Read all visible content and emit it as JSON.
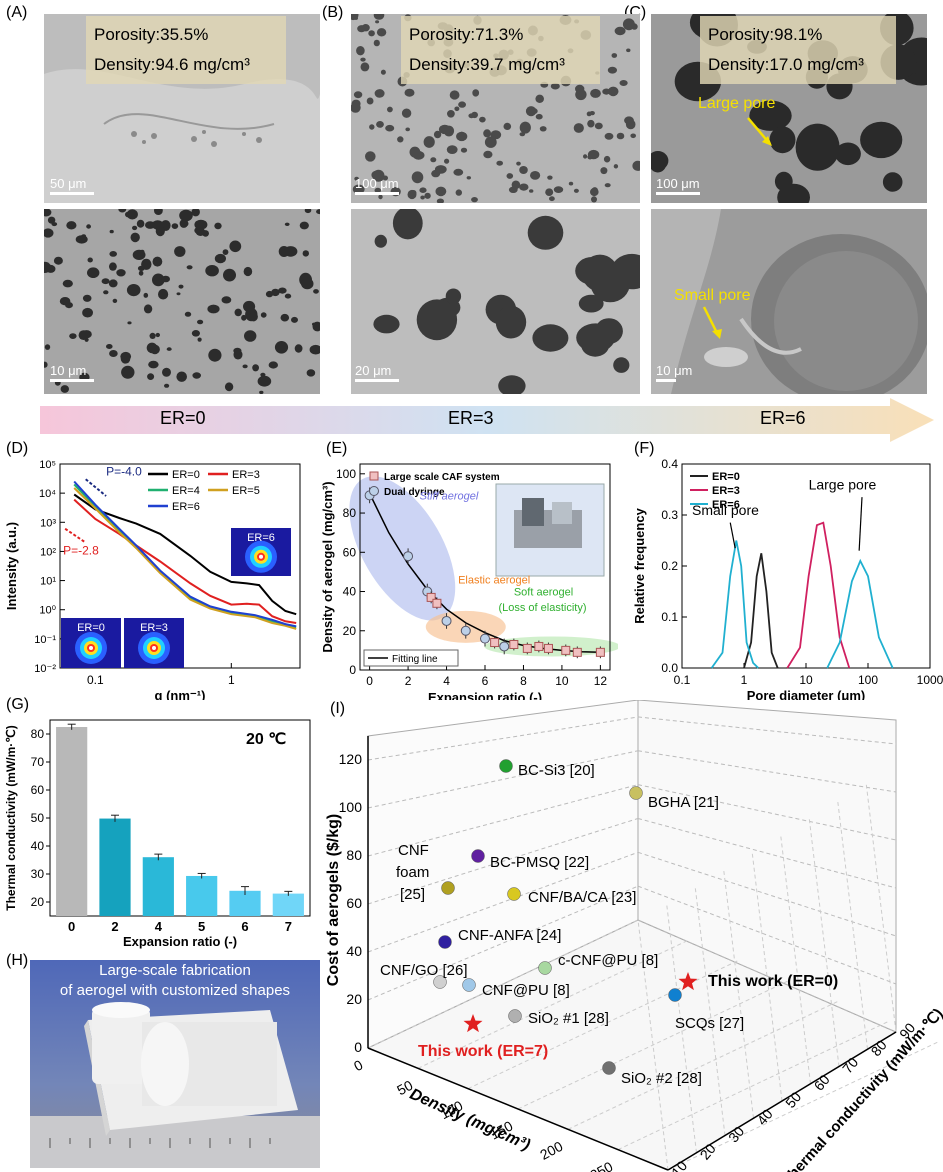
{
  "panels": {
    "A": {
      "label": "(A)",
      "porosity": "Porosity:35.5%",
      "density": "Density:94.6 mg/cm³",
      "scale_top": "50 μm",
      "scale_bottom": "10 μm"
    },
    "B": {
      "label": "(B)",
      "porosity": "Porosity:71.3%",
      "density": "Density:39.7 mg/cm³",
      "scale_top": "100 μm",
      "scale_bottom": "20 μm"
    },
    "C": {
      "label": "(C)",
      "porosity": "Porosity:98.1%",
      "density": "Density:17.0 mg/cm³",
      "scale_top": "100 μm",
      "scale_bottom": "10 μm",
      "large_pore": "Large pore",
      "small_pore": "Small pore"
    },
    "D": {
      "label": "(D)"
    },
    "E": {
      "label": "(E)"
    },
    "F": {
      "label": "(F)"
    },
    "G": {
      "label": "(G)"
    },
    "H": {
      "label": "(H)",
      "caption_1": "Large-scale fabrication",
      "caption_2": "of aerogel with customized shapes"
    },
    "I": {
      "label": "(I)"
    }
  },
  "er_arrow": {
    "left": "ER=0",
    "mid": "ER=3",
    "right": "ER=6"
  },
  "chart_data": [
    {
      "id": "D",
      "type": "line",
      "xlabel": "q (nm⁻¹)",
      "ylabel": "Intensity (a.u.)",
      "log_x": true,
      "log_y": true,
      "ylim": [
        0.01,
        100000
      ],
      "x_ticks": [
        "0.1",
        "1"
      ],
      "y_ticks": [
        "10⁻²",
        "10⁻¹",
        "10⁰",
        "10¹",
        "10²",
        "10³",
        "10⁴",
        "10⁵"
      ],
      "annotations": [
        "P=-4.0",
        "P=-2.8"
      ],
      "insets": [
        "ER=6",
        "ER=0",
        "ER=3"
      ],
      "legend": "top-right",
      "series": [
        {
          "name": "ER=0",
          "color": "#000000",
          "x": [
            0.07,
            0.1,
            0.15,
            0.2,
            0.3,
            0.5,
            0.7,
            1.0,
            1.3,
            1.6,
            2.0,
            2.5,
            3.0
          ],
          "y": [
            9000,
            2800,
            1400,
            900,
            400,
            70,
            20,
            9,
            8,
            7,
            2,
            0.9,
            0.7
          ]
        },
        {
          "name": "ER=3",
          "color": "#e02020",
          "x": [
            0.07,
            0.1,
            0.15,
            0.2,
            0.3,
            0.5,
            0.7,
            1.0,
            1.3,
            1.6,
            2.0,
            2.5,
            3.0
          ],
          "y": [
            6000,
            1300,
            400,
            160,
            45,
            8,
            3,
            1.5,
            1.6,
            1.5,
            0.6,
            0.4,
            0.35
          ]
        },
        {
          "name": "ER=4",
          "color": "#20b070",
          "x": [
            0.07,
            0.1,
            0.15,
            0.2,
            0.3,
            0.5,
            0.7,
            1.0,
            1.5,
            2.0,
            2.5,
            3.0
          ],
          "y": [
            20000,
            3500,
            500,
            150,
            20,
            2.5,
            1.2,
            0.8,
            0.6,
            0.4,
            0.3,
            0.25
          ]
        },
        {
          "name": "ER=5",
          "color": "#d0a020",
          "x": [
            0.07,
            0.1,
            0.15,
            0.2,
            0.3,
            0.5,
            0.7,
            1.0,
            1.5,
            2.0,
            2.5,
            3.0
          ],
          "y": [
            15000,
            3000,
            450,
            130,
            18,
            2.2,
            1.1,
            0.7,
            0.55,
            0.35,
            0.28,
            0.22
          ]
        },
        {
          "name": "ER=6",
          "color": "#2040d0",
          "x": [
            0.07,
            0.1,
            0.15,
            0.2,
            0.3,
            0.5,
            0.7,
            1.0,
            1.5,
            2.0,
            2.5,
            3.0
          ],
          "y": [
            25000,
            4000,
            600,
            160,
            22,
            2.8,
            1.3,
            0.85,
            0.65,
            0.45,
            0.32,
            0.27
          ]
        }
      ]
    },
    {
      "id": "E",
      "type": "scatter",
      "xlabel": "Expansion ratio (-)",
      "ylabel": "Density of aerogel (mg/cm³)",
      "xlim": [
        -0.5,
        12.5
      ],
      "ylim": [
        0,
        105
      ],
      "x_ticks": [
        0,
        2,
        4,
        6,
        8,
        10,
        12
      ],
      "y_ticks": [
        0,
        20,
        40,
        60,
        80,
        100
      ],
      "annotations": [
        "Stiff aerogel",
        "Elastic aerogel",
        "Soft aerogel",
        "(Loss of elasticity)"
      ],
      "legend": "top-left",
      "series": [
        {
          "name": "Large scale CAF system",
          "marker": "square",
          "x": [
            3.2,
            3.5,
            6.5,
            7.5,
            8.2,
            8.8,
            9.3,
            10.2,
            10.8,
            12
          ],
          "y": [
            37,
            34,
            14,
            13,
            11,
            12,
            11,
            10,
            9,
            9
          ]
        },
        {
          "name": "Dual dyringe",
          "marker": "circle",
          "x": [
            0,
            2,
            3,
            4,
            5,
            6,
            7
          ],
          "y": [
            89,
            58,
            40,
            25,
            20,
            16,
            12
          ]
        },
        {
          "name": "Fitting line",
          "marker": "line",
          "x": [
            0,
            1,
            2,
            3,
            4,
            5,
            6,
            7,
            8,
            9,
            10,
            11,
            12
          ],
          "y": [
            90,
            70,
            54,
            41,
            31,
            24,
            19,
            15,
            12.5,
            11,
            10,
            9.3,
            9
          ]
        }
      ]
    },
    {
      "id": "F",
      "type": "line",
      "xlabel": "Pore diameter (μm)",
      "ylabel": "Relative frequency",
      "log_x": true,
      "ylim": [
        0,
        0.4
      ],
      "x_ticks": [
        "0.1",
        "1",
        "10",
        "100",
        "1000"
      ],
      "y_ticks": [
        "0.0",
        "0.1",
        "0.2",
        "0.3",
        "0.4"
      ],
      "annotations": [
        "Small pore",
        "Large pore"
      ],
      "legend": "top-left",
      "series": [
        {
          "name": "ER=0",
          "color": "#222222",
          "x": [
            1.0,
            1.3,
            1.6,
            1.9,
            2.3,
            2.8,
            3.5
          ],
          "y": [
            0,
            0.05,
            0.18,
            0.225,
            0.15,
            0.03,
            0
          ]
        },
        {
          "name": "ER=3",
          "color": "#d02060",
          "x": [
            5,
            8,
            11,
            15,
            19,
            25,
            35,
            50
          ],
          "y": [
            0,
            0.04,
            0.18,
            0.28,
            0.285,
            0.2,
            0.06,
            0
          ]
        },
        {
          "name": "ER=6",
          "color": "#20b0d0",
          "x": [
            0.3,
            0.45,
            0.6,
            0.75,
            0.9,
            1.1,
            1.4,
            1.7,
            22,
            35,
            55,
            75,
            100,
            150,
            250
          ],
          "y": [
            0,
            0.03,
            0.18,
            0.25,
            0.2,
            0.05,
            0.01,
            0,
            0,
            0.05,
            0.17,
            0.21,
            0.18,
            0.06,
            0
          ]
        }
      ]
    },
    {
      "id": "G",
      "type": "bar",
      "xlabel": "Expansion ratio (-)",
      "ylabel": "Thermal conductivity (mW/m·℃)",
      "annotation": "20 ℃",
      "ylim": [
        15,
        85
      ],
      "y_ticks": [
        20,
        30,
        40,
        50,
        60,
        70,
        80
      ],
      "categories": [
        "0",
        "2",
        "4",
        "5",
        "6",
        "7"
      ],
      "values": [
        82.5,
        49.8,
        36.0,
        29.3,
        24.0,
        23.0
      ],
      "errors": [
        1.0,
        1.2,
        1.1,
        0.9,
        1.5,
        0.8
      ],
      "colors": [
        "#b8b8b8",
        "#15a2be",
        "#2ab8d8",
        "#48c9ec",
        "#55ccf2",
        "#70d6f8"
      ]
    },
    {
      "id": "I",
      "type": "scatter",
      "xlabel": "Density (mg/cm³)",
      "ylabel": "Cost of aerogels ($/kg)",
      "zlabel": "Thermal conductivity (mW/m·℃)",
      "y_ticks": [
        0,
        20,
        40,
        60,
        80,
        100,
        120
      ],
      "x_ticks": [
        0,
        50,
        100,
        150,
        200,
        250,
        300
      ],
      "z_ticks": [
        10,
        20,
        30,
        40,
        50,
        60,
        70,
        80,
        90
      ],
      "points": [
        {
          "label": "BC-Si3 [20]",
          "color": "#22a030"
        },
        {
          "label": "BGHA [21]",
          "color": "#c8c060"
        },
        {
          "label": "BC-PMSQ [22]",
          "color": "#6020a0"
        },
        {
          "label": "CNF foam [25]",
          "color": "#b0a020"
        },
        {
          "label": "CNF/BA/CA [23]",
          "color": "#d8c820"
        },
        {
          "label": "CNF-ANFA [24]",
          "color": "#3020a0"
        },
        {
          "label": "c-CNF@PU [8]",
          "color": "#a8d8a0"
        },
        {
          "label": "CNF/GO [26]",
          "color": "#d0d0d0"
        },
        {
          "label": "CNF@PU [8]",
          "color": "#a0c8e8"
        },
        {
          "label": "SiO₂ #1 [28]",
          "color": "#b0b0b0"
        },
        {
          "label": "SCQs [27]",
          "color": "#1080d0"
        },
        {
          "label": "SiO₂ #2 [28]",
          "color": "#707070"
        },
        {
          "label": "This work (ER=0)",
          "color": "#e02020"
        },
        {
          "label": "This work (ER=7)",
          "color": "#e02020"
        }
      ]
    }
  ]
}
